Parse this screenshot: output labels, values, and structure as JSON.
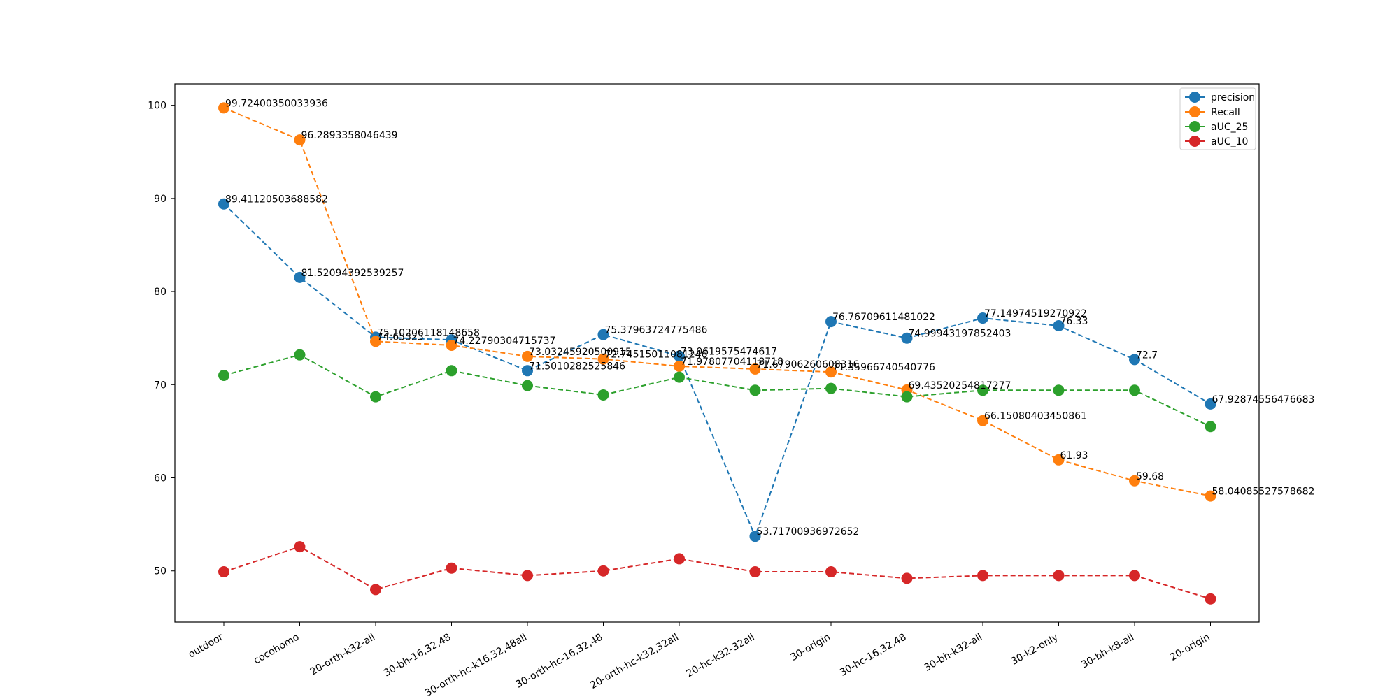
{
  "chart_data": {
    "type": "line",
    "categories": [
      "outdoor",
      "cocohomo",
      "20-orth-k32-all",
      "30-bh-16,32,48",
      "30-orth-hc-k16,32,48all",
      "30-orth-hc-16,32,48",
      "20-orth-hc-k32,32all",
      "20-hc-k32-32all",
      "30-origin",
      "30-hc-16,32,48",
      "30-bh-k32-all",
      "30-k2-only",
      "30-bh-k8-all",
      "20-origin"
    ],
    "ylim": [
      44.5,
      102.3
    ],
    "yticks": [
      50,
      60,
      70,
      80,
      90,
      100
    ],
    "grid": false,
    "legend_position": "top-right",
    "series": [
      {
        "name": "precision",
        "color": "#1f77b4",
        "values": [
          89.41120503688582,
          81.52094392539257,
          75.10206118148658,
          74.80977,
          71.5010282525846,
          75.37963724775486,
          73.0619575474617,
          53.71700936972652,
          76.76709611481022,
          74.99943197852403,
          77.14974519270922,
          76.33,
          72.7,
          67.92874556476683
        ],
        "labels": [
          "89.41120503688582",
          "81.52094392539257",
          "75.10206118148658",
          "",
          "71.5010282525846",
          "75.37963724775486",
          "73.0619575474617",
          "53.71700936972652",
          "76.76709611481022",
          "74.99943197852403",
          "77.14974519270922",
          "76.33",
          "72.7",
          "67.92874556476683"
        ]
      },
      {
        "name": "Recall",
        "color": "#ff7f0e",
        "values": [
          99.72400350033936,
          96.2893358046439,
          74.65,
          74.22790304715737,
          73.03245920500915,
          72.74515011081246,
          71.97807704118718,
          71.67906260608316,
          71.35966740540776,
          69.43520254817277,
          66.15080403450861,
          61.93,
          59.68,
          58.04085527578682
        ],
        "labels": [
          "99.72400350033936",
          "96.2893358046439",
          "74.65323",
          "74.22790304715737",
          "73.03245920500915",
          "72.74515011081246",
          "71.97807704118718",
          "71.67906260608316",
          "71.35966740540776",
          "69.43520254817277",
          "66.15080403450861",
          "61.93",
          "59.68",
          "58.04085527578682"
        ]
      },
      {
        "name": "aUC_25",
        "color": "#2ca02c",
        "values": [
          71.0,
          73.2,
          68.7,
          71.5,
          69.9,
          68.9,
          70.8,
          69.4,
          69.6,
          68.7,
          69.4,
          69.4,
          69.4,
          65.5
        ],
        "labels": []
      },
      {
        "name": "aUC_10",
        "color": "#d62728",
        "values": [
          49.9,
          52.6,
          48.0,
          50.3,
          49.5,
          50.0,
          51.3,
          49.9,
          49.9,
          49.2,
          49.5,
          49.5,
          49.5,
          47.0
        ],
        "labels": []
      }
    ]
  }
}
